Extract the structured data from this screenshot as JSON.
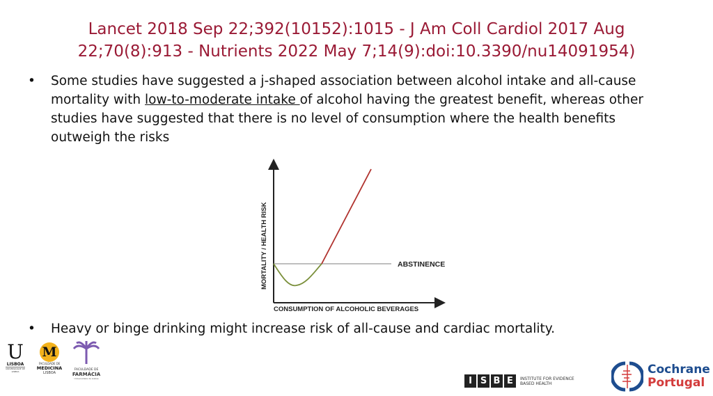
{
  "slide": {
    "title_line1": "Lancet 2018 Sep 22;392(10152):1015 - J Am Coll Cardiol 2017 Aug",
    "title_line2": "22;70(8):913 - Nutrients 2022 May 7;14(9):doi:10.3390/nu14091954)",
    "bullets": [
      {
        "before": "Some studies have suggested a j-shaped association between alcohol intake and all-cause mortality with ",
        "underlined": "low-to-moderate intake ",
        "after": "of alcohol having the greatest benefit, whereas other studies have suggested that there is no level of consumption where the health benefits outweigh the risks"
      },
      {
        "before": "Heavy or binge drinking might increase risk of all-cause and cardiac mortality."
      }
    ],
    "bullet_symbol": "•"
  },
  "diagram": {
    "y_label": "MORTALITY / HEALTH RISK",
    "x_label": "CONSUMPTION OF ALCOHOLIC BEVERAGES",
    "reference_label": "ABSTINENCE",
    "colors": {
      "benefit_curve": "#7a8f3a",
      "risk_curve": "#b0322e",
      "reference": "#999999",
      "title": "#9a1a35"
    }
  },
  "logos": {
    "ulisboa": {
      "mark": "U",
      "text": "LISBOA",
      "sub": "UNIVERSIDADE DE LISBOA"
    },
    "medicina": {
      "mark": "M",
      "text1": "FACULDADE DE",
      "text2": "MEDICINA",
      "text3": "LISBOA"
    },
    "farmacia": {
      "text1": "FACULDADE DE",
      "text2": "FARMÁCIA",
      "text3": "Universidade de Lisboa"
    },
    "isbe": {
      "letters": [
        "I",
        "S",
        "B",
        "E"
      ],
      "text1": "INSTITUTE FOR EVIDENCE",
      "text2": "BASED HEALTH"
    },
    "cochrane": {
      "text1": "Cochrane",
      "text2": "Portugal"
    }
  }
}
